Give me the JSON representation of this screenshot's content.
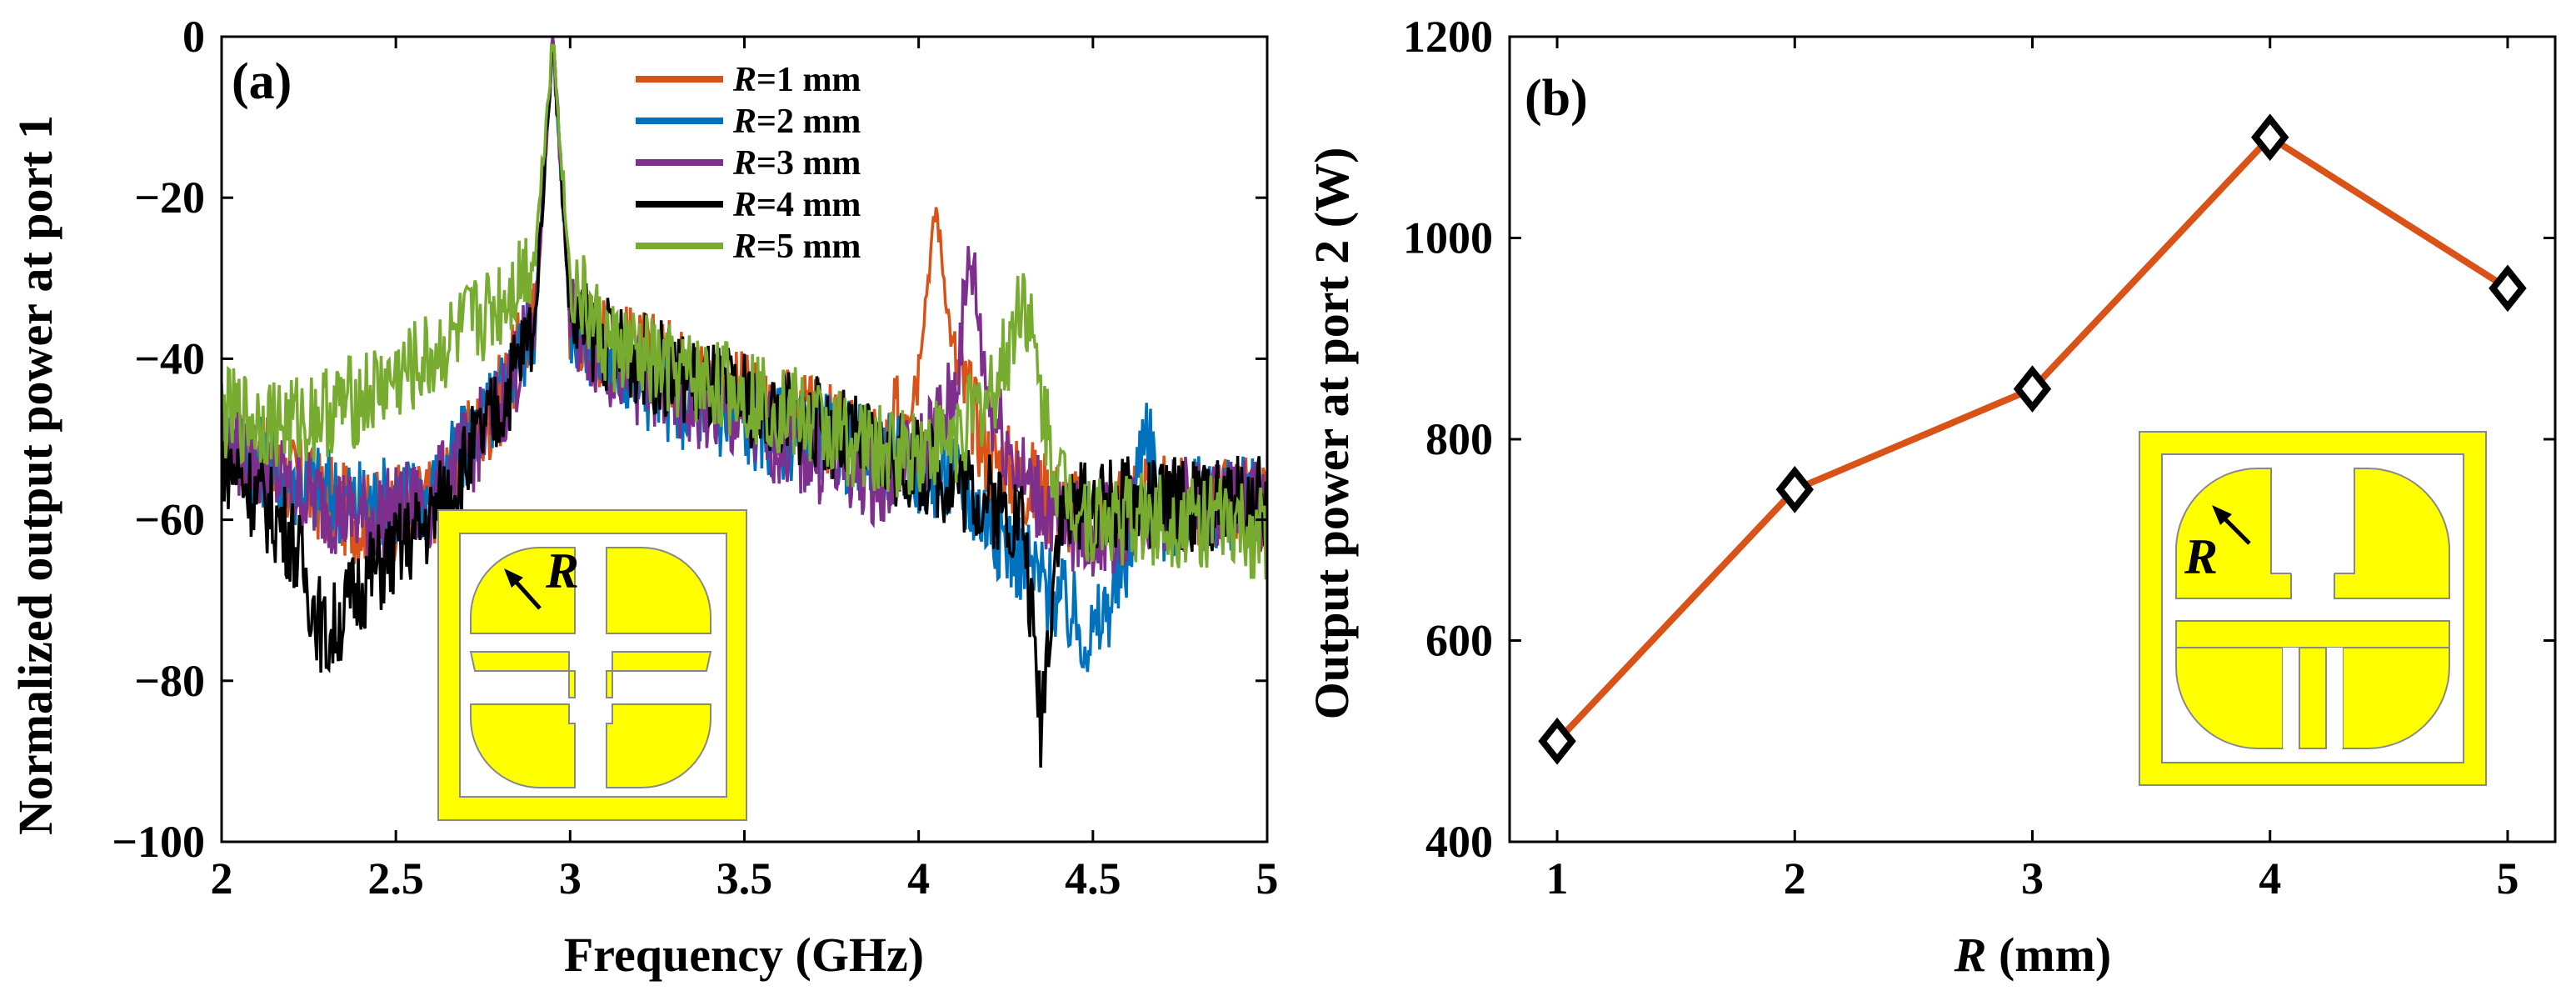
{
  "chart_data": [
    {
      "id": "a",
      "type": "line",
      "panel_label": "(a)",
      "title": "",
      "xlabel": "Frequency (GHz)",
      "ylabel": "Normalized output power at port 1",
      "xlim": [
        2,
        5
      ],
      "ylim": [
        -100,
        0
      ],
      "xticks": [
        "2",
        "2.5",
        "3",
        "3.5",
        "4",
        "4.5",
        "5"
      ],
      "yticks": [
        "0",
        "−20",
        "−40",
        "−60",
        "−80",
        "−100"
      ],
      "legend_position": "top-right",
      "legend_var": "R",
      "series": [
        {
          "name": "R=1 mm",
          "label_rest": "=1 mm",
          "color": "#D95319",
          "x": [
            2.0,
            2.2,
            2.4,
            2.6,
            2.8,
            2.9,
            2.95,
            3.0,
            3.1,
            3.3,
            3.5,
            3.7,
            3.9,
            4.0,
            4.05,
            4.1,
            4.2,
            4.3,
            4.4,
            4.5,
            4.6,
            4.8,
            5.0
          ],
          "y": [
            -50,
            -55,
            -60,
            -58,
            -45,
            -35,
            0,
            -35,
            -38,
            -41,
            -45,
            -48,
            -52,
            -40,
            -21,
            -40,
            -52,
            -55,
            -58,
            -60,
            -58,
            -58,
            -58
          ]
        },
        {
          "name": "R=2 mm",
          "label_rest": "=2 mm",
          "color": "#0072BD",
          "x": [
            2.0,
            2.2,
            2.4,
            2.6,
            2.8,
            2.9,
            2.95,
            3.0,
            3.1,
            3.3,
            3.5,
            3.7,
            3.9,
            4.1,
            4.2,
            4.3,
            4.4,
            4.5,
            4.6,
            4.65,
            4.7,
            4.8,
            5.0
          ],
          "y": [
            -50,
            -55,
            -58,
            -57,
            -45,
            -35,
            0,
            -35,
            -40,
            -45,
            -48,
            -50,
            -52,
            -55,
            -60,
            -65,
            -70,
            -75,
            -65,
            -46,
            -60,
            -58,
            -58
          ]
        },
        {
          "name": "R=3 mm",
          "label_rest": "=3 mm",
          "color": "#7E2F8E",
          "x": [
            2.0,
            2.2,
            2.4,
            2.6,
            2.8,
            2.9,
            2.95,
            3.0,
            3.1,
            3.3,
            3.5,
            3.7,
            3.9,
            4.0,
            4.1,
            4.15,
            4.2,
            4.3,
            4.4,
            4.5,
            4.7,
            5.0
          ],
          "y": [
            -50,
            -56,
            -60,
            -58,
            -46,
            -35,
            0,
            -35,
            -40,
            -45,
            -48,
            -52,
            -55,
            -52,
            -45,
            -27,
            -45,
            -55,
            -60,
            -62,
            -58,
            -58
          ]
        },
        {
          "name": "R=4 mm",
          "label_rest": "=4 mm",
          "color": "#000000",
          "x": [
            2.0,
            2.2,
            2.3,
            2.4,
            2.6,
            2.8,
            2.9,
            2.95,
            3.0,
            3.1,
            3.3,
            3.5,
            3.7,
            3.9,
            4.1,
            4.3,
            4.35,
            4.4,
            4.5,
            4.6,
            4.8,
            5.0
          ],
          "y": [
            -52,
            -62,
            -75,
            -68,
            -60,
            -46,
            -35,
            0,
            -35,
            -38,
            -42,
            -45,
            -48,
            -52,
            -55,
            -60,
            -85,
            -60,
            -58,
            -58,
            -58,
            -58
          ]
        },
        {
          "name": "R=5 mm",
          "label_rest": "=5 mm",
          "color": "#77AC30",
          "x": [
            2.0,
            2.2,
            2.4,
            2.6,
            2.8,
            2.9,
            2.95,
            3.0,
            3.1,
            3.3,
            3.5,
            3.7,
            3.9,
            4.1,
            4.2,
            4.25,
            4.3,
            4.35,
            4.4,
            4.5,
            4.6,
            4.8,
            5.0
          ],
          "y": [
            -47,
            -48,
            -45,
            -40,
            -33,
            -27,
            0,
            -30,
            -38,
            -42,
            -44,
            -48,
            -52,
            -50,
            -45,
            -40,
            -31,
            -45,
            -55,
            -60,
            -60,
            -60,
            -62
          ]
        }
      ],
      "inset_label": "R"
    },
    {
      "id": "b",
      "type": "line",
      "panel_label": "(b)",
      "title": "",
      "xlabel_var": "R",
      "xlabel_rest": " (mm)",
      "xlabel": "R (mm)",
      "ylabel": "Output power at port 2 (W)",
      "xlim": [
        0.8,
        5.2
      ],
      "ylim": [
        400,
        1200
      ],
      "xticks": [
        "1",
        "2",
        "3",
        "4",
        "5"
      ],
      "yticks": [
        "400",
        "600",
        "800",
        "1000",
        "1200"
      ],
      "series": [
        {
          "name": "Output power",
          "color": "#D95319",
          "marker": "diamond",
          "x": [
            1,
            2,
            3,
            4,
            5
          ],
          "y": [
            500,
            750,
            850,
            1100,
            950
          ]
        }
      ],
      "inset_label": "R"
    }
  ],
  "colors": {
    "inset_fill": "#FFFF00",
    "inset_stroke": "#888888",
    "axis": "#000000"
  }
}
